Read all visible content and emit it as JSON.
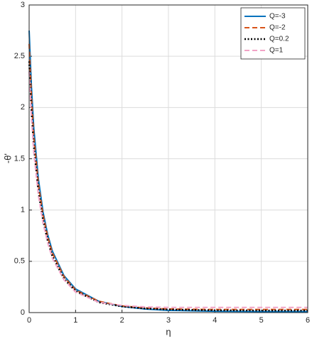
{
  "chart_data": {
    "type": "line",
    "xlabel": "η",
    "ylabel": "-θ'",
    "x": [
      0,
      0.05,
      0.1,
      0.2,
      0.3,
      0.4,
      0.5,
      0.75,
      1,
      1.5,
      2,
      2.5,
      3,
      4,
      5,
      6
    ],
    "series": [
      {
        "name": "Q=-3",
        "color": "#0072bd",
        "linestyle": "solid",
        "values": [
          2.75,
          2.2,
          1.8,
          1.3,
          0.98,
          0.76,
          0.6,
          0.36,
          0.23,
          0.11,
          0.06,
          0.035,
          0.022,
          0.013,
          0.01,
          0.01
        ]
      },
      {
        "name": "Q=-2",
        "color": "#d95319",
        "linestyle": "dashed",
        "values": [
          2.62,
          2.1,
          1.72,
          1.25,
          0.95,
          0.74,
          0.58,
          0.35,
          0.22,
          0.11,
          0.065,
          0.045,
          0.035,
          0.03,
          0.03,
          0.03
        ]
      },
      {
        "name": "Q=0.2",
        "color": "#000000",
        "linestyle": "dotted",
        "values": [
          2.45,
          1.97,
          1.62,
          1.18,
          0.9,
          0.7,
          0.55,
          0.33,
          0.21,
          0.1,
          0.06,
          0.04,
          0.03,
          0.022,
          0.02,
          0.02
        ]
      },
      {
        "name": "Q=1",
        "color": "#f2a3c6",
        "linestyle": "dashed",
        "values": [
          2.35,
          1.9,
          1.56,
          1.14,
          0.87,
          0.68,
          0.53,
          0.32,
          0.2,
          0.1,
          0.07,
          0.055,
          0.05,
          0.05,
          0.05,
          0.05
        ]
      }
    ],
    "xlim": [
      0,
      6
    ],
    "xticks": [
      0,
      1,
      2,
      3,
      4,
      5,
      6
    ],
    "ylim": [
      0,
      3
    ],
    "yticks": [
      0,
      0.5,
      1,
      1.5,
      2,
      2.5,
      3
    ],
    "grid": true,
    "legend": "northeast"
  }
}
